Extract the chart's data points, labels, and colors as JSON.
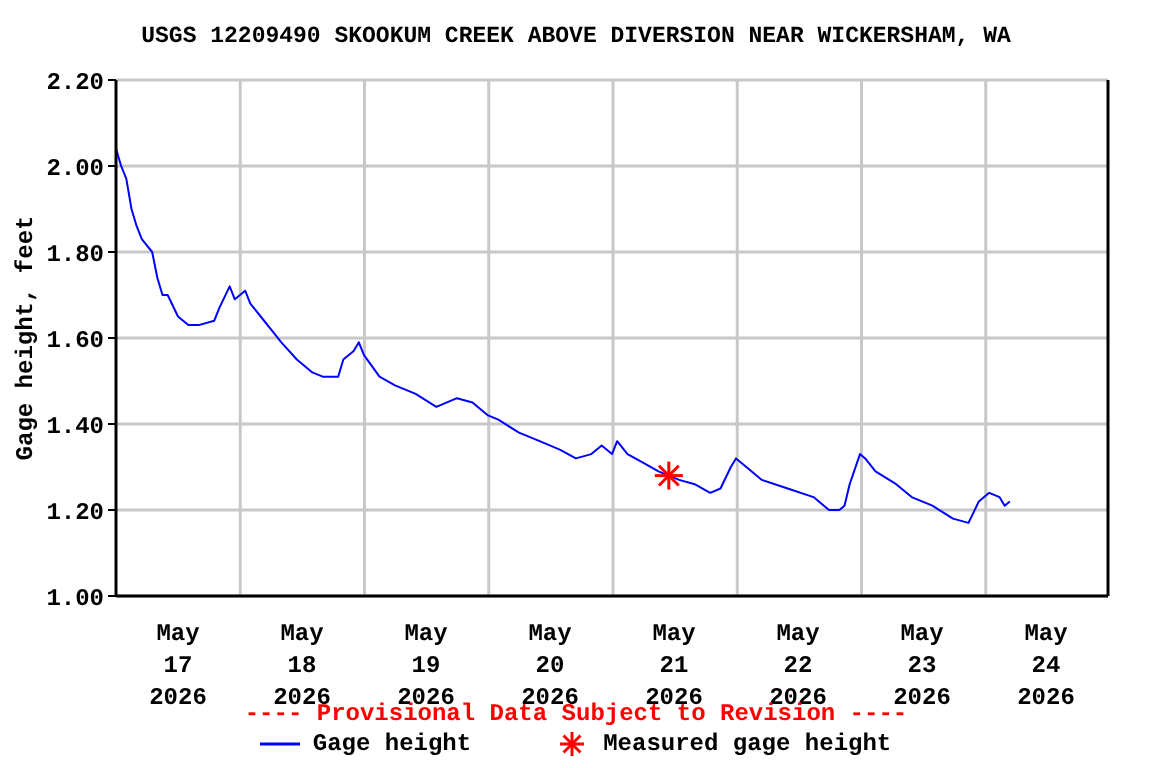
{
  "chart_data": {
    "type": "line",
    "title": "USGS 12209490 SKOOKUM CREEK ABOVE DIVERSION NEAR WICKERSHAM, WA",
    "ylabel": "Gage height, feet",
    "annotations": [
      "---- Provisional Data Subject to Revision ----"
    ],
    "xlim": [
      "2026-05-17T00:00",
      "2026-05-25T00:00"
    ],
    "xticks": [
      {
        "value": "2026-05-17T12:00",
        "label": "May\n17\n2026"
      },
      {
        "value": "2026-05-18T00:00",
        "label": null
      },
      {
        "value": "2026-05-18T12:00",
        "label": "May\n18\n2026"
      },
      {
        "value": "2026-05-19T00:00",
        "label": null
      },
      {
        "value": "2026-05-19T12:00",
        "label": "May\n19\n2026"
      },
      {
        "value": "2026-05-20T00:00",
        "label": null
      },
      {
        "value": "2026-05-20T12:00",
        "label": "May\n20\n2026"
      },
      {
        "value": "2026-05-21T00:00",
        "label": null
      },
      {
        "value": "2026-05-21T12:00",
        "label": "May\n21\n2026"
      },
      {
        "value": "2026-05-22T00:00",
        "label": null
      },
      {
        "value": "2026-05-22T12:00",
        "label": "May\n22\n2026"
      },
      {
        "value": "2026-05-23T00:00",
        "label": null
      },
      {
        "value": "2026-05-23T12:00",
        "label": "May\n23\n2026"
      },
      {
        "value": "2026-05-24T00:00",
        "label": null
      },
      {
        "value": "2026-05-24T12:00",
        "label": "May\n24\n2026"
      }
    ],
    "ylim": [
      1.0,
      2.2
    ],
    "yticks": [
      {
        "value": 1.0,
        "label": "1.00"
      },
      {
        "value": 1.2,
        "label": "1.20"
      },
      {
        "value": 1.4,
        "label": "1.40"
      },
      {
        "value": 1.6,
        "label": "1.60"
      },
      {
        "value": 1.8,
        "label": "1.80"
      },
      {
        "value": 2.0,
        "label": "2.00"
      },
      {
        "value": 2.2,
        "label": "2.20"
      }
    ],
    "grid": true,
    "legend": "bottom",
    "series": [
      {
        "name": "Gage height",
        "color": "#0000ff",
        "x": [
          "2026-05-17T00:00",
          "2026-05-17T01:00",
          "2026-05-17T02:00",
          "2026-05-17T03:00",
          "2026-05-17T04:00",
          "2026-05-17T05:00",
          "2026-05-17T07:00",
          "2026-05-17T08:00",
          "2026-05-17T09:00",
          "2026-05-17T10:00",
          "2026-05-17T12:00",
          "2026-05-17T14:00",
          "2026-05-17T16:00",
          "2026-05-17T19:00",
          "2026-05-17T20:00",
          "2026-05-17T22:00",
          "2026-05-17T23:00",
          "2026-05-18T01:00",
          "2026-05-18T02:00",
          "2026-05-18T04:00",
          "2026-05-18T06:00",
          "2026-05-18T08:00",
          "2026-05-18T11:00",
          "2026-05-18T14:00",
          "2026-05-18T16:00",
          "2026-05-18T19:00",
          "2026-05-18T20:00",
          "2026-05-18T22:00",
          "2026-05-18T23:00",
          "2026-05-19T00:00",
          "2026-05-19T03:00",
          "2026-05-19T06:00",
          "2026-05-19T10:00",
          "2026-05-19T14:00",
          "2026-05-19T18:00",
          "2026-05-19T21:00",
          "2026-05-20T00:00",
          "2026-05-20T02:00",
          "2026-05-20T06:00",
          "2026-05-20T10:00",
          "2026-05-20T14:00",
          "2026-05-20T17:00",
          "2026-05-20T20:00",
          "2026-05-20T22:00",
          "2026-05-21T00:00",
          "2026-05-21T01:00",
          "2026-05-21T03:00",
          "2026-05-21T06:00",
          "2026-05-21T09:00",
          "2026-05-21T11:00",
          "2026-05-21T13:00",
          "2026-05-21T16:00",
          "2026-05-21T19:00",
          "2026-05-21T21:00",
          "2026-05-21T23:00",
          "2026-05-22T00:00",
          "2026-05-22T02:00",
          "2026-05-22T05:00",
          "2026-05-22T10:00",
          "2026-05-22T15:00",
          "2026-05-22T18:00",
          "2026-05-22T20:00",
          "2026-05-22T21:00",
          "2026-05-22T22:00",
          "2026-05-23T00:00",
          "2026-05-23T01:00",
          "2026-05-23T03:00",
          "2026-05-23T07:00",
          "2026-05-23T10:00",
          "2026-05-23T14:00",
          "2026-05-23T18:00",
          "2026-05-23T21:00",
          "2026-05-23T23:00",
          "2026-05-24T01:00",
          "2026-05-24T03:00",
          "2026-05-24T04:00",
          "2026-05-24T05:00"
        ],
        "values": [
          2.04,
          2.0,
          1.97,
          1.9,
          1.86,
          1.83,
          1.8,
          1.74,
          1.7,
          1.7,
          1.65,
          1.63,
          1.63,
          1.64,
          1.67,
          1.72,
          1.69,
          1.71,
          1.68,
          1.65,
          1.62,
          1.59,
          1.55,
          1.52,
          1.51,
          1.51,
          1.55,
          1.57,
          1.59,
          1.56,
          1.51,
          1.49,
          1.47,
          1.44,
          1.46,
          1.45,
          1.42,
          1.41,
          1.38,
          1.36,
          1.34,
          1.32,
          1.33,
          1.35,
          1.33,
          1.36,
          1.33,
          1.31,
          1.29,
          1.28,
          1.27,
          1.26,
          1.24,
          1.25,
          1.3,
          1.32,
          1.3,
          1.27,
          1.25,
          1.23,
          1.2,
          1.2,
          1.21,
          1.26,
          1.33,
          1.32,
          1.29,
          1.26,
          1.23,
          1.21,
          1.18,
          1.17,
          1.22,
          1.24,
          1.23,
          1.21,
          1.22
        ]
      },
      {
        "name": "Measured gage height",
        "type": "scatter",
        "marker": "cross",
        "color": "#ff0000",
        "x": [
          "2026-05-21T11:00"
        ],
        "values": [
          1.28
        ]
      }
    ]
  }
}
